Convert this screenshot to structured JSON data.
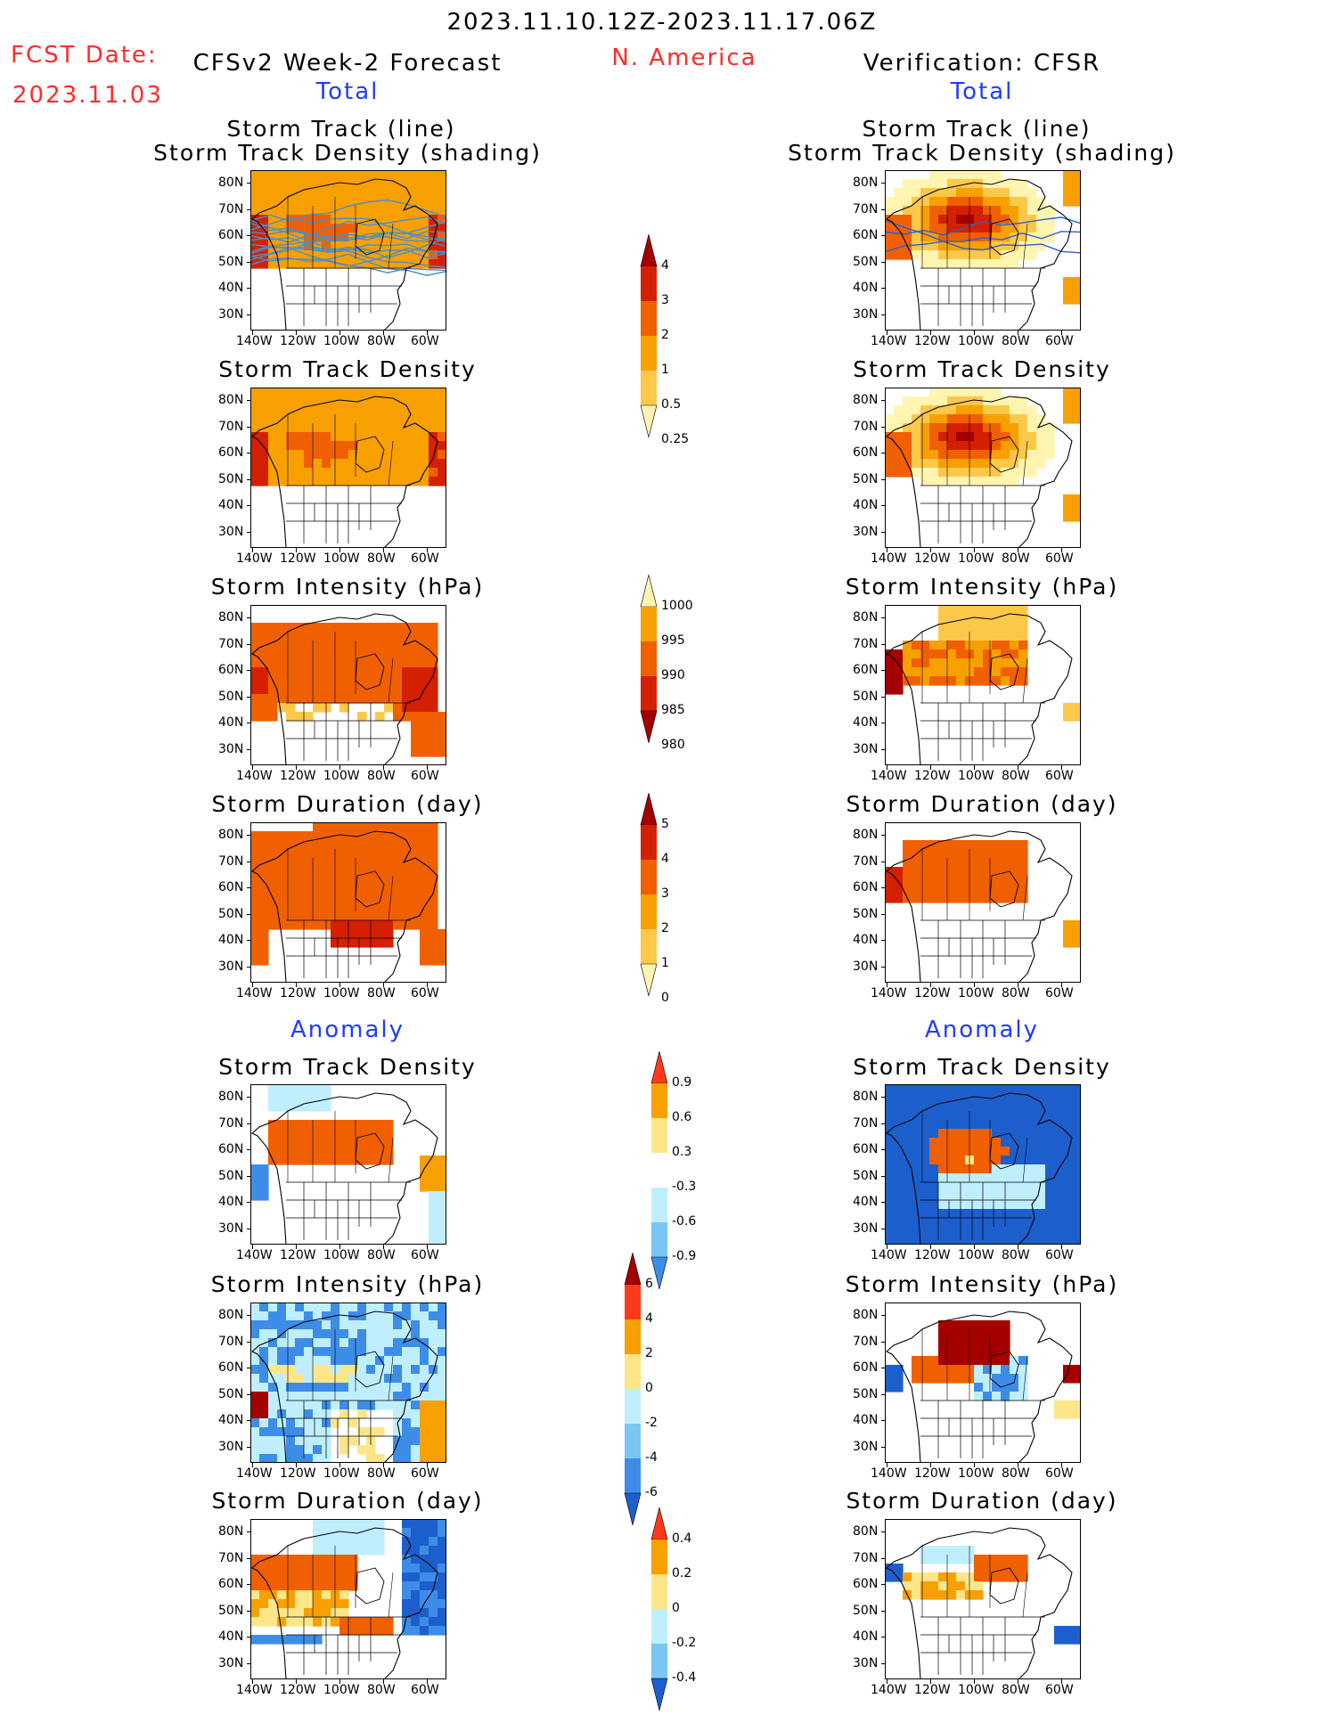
{
  "header": {
    "date_range": "2023.11.10.12Z-2023.11.17.06Z",
    "fcst_label": "FCST Date:",
    "fcst_date": "2023.11.03",
    "forecast_title": "CFSv2 Week-2 Forecast",
    "region": "N. America",
    "verification_title": "Verification: CFSR"
  },
  "sections": {
    "total_left": "Total",
    "total_right": "Total",
    "anomaly_left": "Anomaly",
    "anomaly_right": "Anomaly"
  },
  "panels": {
    "track_line": "Storm Track (line)",
    "track_density_shading": "Storm Track Density (shading)",
    "track_density": "Storm Track Density",
    "intensity": "Storm Intensity (hPa)",
    "duration": "Storm Duration (day)"
  },
  "axes": {
    "lat_labels": [
      "80N",
      "70N",
      "60N",
      "50N",
      "40N",
      "30N"
    ],
    "lon_labels": [
      "140W",
      "120W",
      "100W",
      "80W",
      "60W"
    ]
  },
  "colorbars": {
    "track_density_total": [
      "4",
      "3",
      "2",
      "1",
      "0.5",
      "0.25"
    ],
    "intensity_total": [
      "1000",
      "995",
      "990",
      "985",
      "980"
    ],
    "duration_total": [
      "5",
      "4",
      "3",
      "2",
      "1",
      "0"
    ],
    "track_density_anom": [
      "0.9",
      "0.6",
      "0.3",
      "-0.3",
      "-0.6",
      "-0.9"
    ],
    "intensity_anom": [
      "6",
      "4",
      "2",
      "0",
      "-2",
      "-4",
      "-6"
    ],
    "duration_anom": [
      "0.4",
      "0.2",
      "0",
      "-0.2",
      "-0.4"
    ]
  },
  "colors": {
    "title_red": "#ff2a2a",
    "section_blue": "#1f3cff",
    "dark_red": "#a50000",
    "red": "#e03000",
    "orange_red": "#f06000",
    "orange": "#f7a000",
    "light_orange": "#fcc84a",
    "light_yellow": "#fff5b0",
    "light_blue": "#bfefff",
    "mid_blue": "#79c6f4",
    "blue": "#3d8de8",
    "dark_blue": "#1c5fcc",
    "track_line": "#4a90c8"
  }
}
